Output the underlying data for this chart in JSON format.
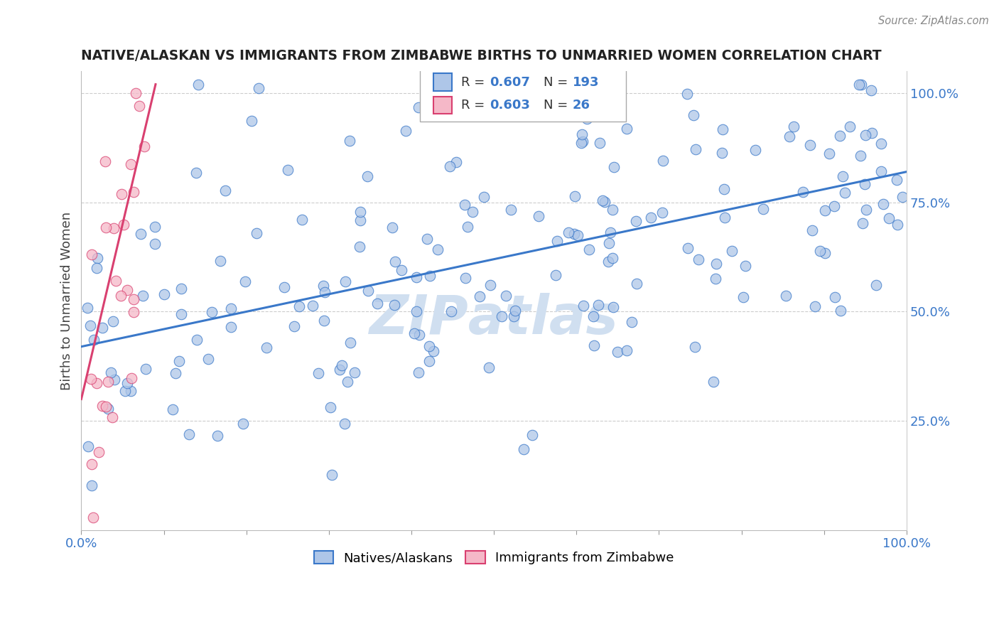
{
  "title": "NATIVE/ALASKAN VS IMMIGRANTS FROM ZIMBABWE BIRTHS TO UNMARRIED WOMEN CORRELATION CHART",
  "source": "Source: ZipAtlas.com",
  "ylabel": "Births to Unmarried Women",
  "blue_R": 0.607,
  "blue_N": 193,
  "pink_R": 0.603,
  "pink_N": 26,
  "xlim": [
    0.0,
    1.0
  ],
  "ylim": [
    0.0,
    1.05
  ],
  "blue_color": "#aec6e8",
  "pink_color": "#f5b8c8",
  "blue_line_color": "#3a78c9",
  "pink_line_color": "#d94070",
  "watermark_color": "#d0dff0",
  "title_color": "#222222",
  "axis_label_color": "#444444",
  "tick_label_color": "#3a78c9",
  "grid_color": "#cccccc",
  "background_color": "#ffffff",
  "legend_blue_label": "Natives/Alaskans",
  "legend_pink_label": "Immigrants from Zimbabwe",
  "blue_seed": 12,
  "pink_seed": 77
}
